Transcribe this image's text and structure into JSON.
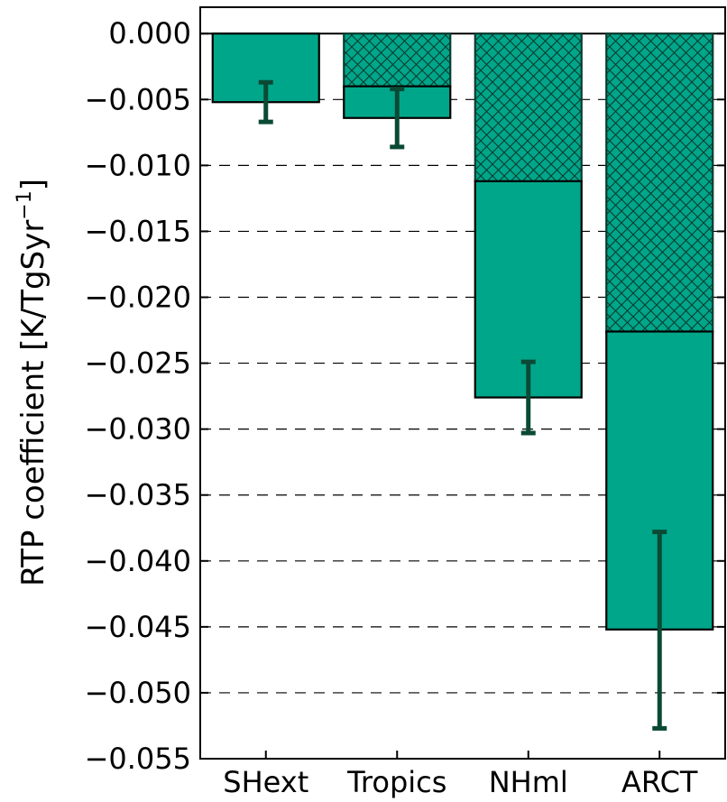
{
  "chart_data": {
    "type": "bar",
    "stacked": true,
    "categories": [
      "SHext",
      "Tropics",
      "NHml",
      "ARCT"
    ],
    "series": [
      {
        "pattern": "crosshatch",
        "values": [
          0.0,
          -0.004,
          -0.0112,
          -0.0226
        ]
      },
      {
        "pattern": "solid",
        "values": [
          -0.0052,
          -0.0024,
          -0.0164,
          -0.0226
        ]
      }
    ],
    "totals": [
      -0.0052,
      -0.0064,
      -0.0276,
      -0.0452
    ],
    "error_bars": [
      {
        "center": -0.0052,
        "low": -0.0067,
        "high": -0.0037
      },
      {
        "center": -0.0064,
        "low": -0.0086,
        "high": -0.0042
      },
      {
        "center": -0.0276,
        "low": -0.0303,
        "high": -0.0249
      },
      {
        "center": -0.0452,
        "low": -0.0527,
        "high": -0.0378
      }
    ],
    "ylabel": "RTP coefficient [K/TgSyr",
    "ylabel_superscript": "−1",
    "ylabel_close": "]",
    "ylim": [
      -0.055,
      0.002
    ],
    "yticks": [
      0.0,
      -0.005,
      -0.01,
      -0.015,
      -0.02,
      -0.025,
      -0.03,
      -0.035,
      -0.04,
      -0.045,
      -0.05,
      -0.055
    ],
    "ytick_labels": [
      "0.000",
      "−0.005",
      "−0.010",
      "−0.015",
      "−0.020",
      "−0.025",
      "−0.030",
      "−0.035",
      "−0.040",
      "−0.045",
      "−0.050",
      "−0.055"
    ],
    "grid": "horizontal-dashed",
    "colors": {
      "bar_fill": "#00a68a",
      "edge": "#0b3b2e",
      "error_bar": "#0a4a35",
      "grid": "#000000"
    }
  }
}
